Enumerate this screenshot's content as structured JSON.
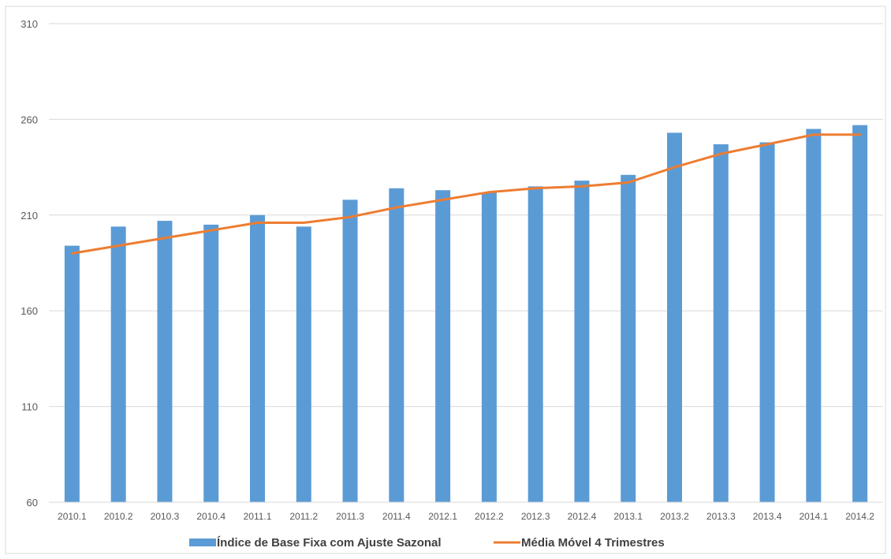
{
  "chart_data": {
    "type": "bar",
    "title": "",
    "xlabel": "",
    "ylabel": "",
    "categories": [
      "2010.1",
      "2010.2",
      "2010.3",
      "2010.4",
      "2011.1",
      "2011.2",
      "2011.3",
      "2011.4",
      "2012.1",
      "2012.2",
      "2012.3",
      "2012.4",
      "2013.1",
      "2013.2",
      "2013.3",
      "2013.4",
      "2014.1",
      "2014.2"
    ],
    "ylim": [
      60,
      310
    ],
    "yticks": [
      60,
      110,
      160,
      210,
      260,
      310
    ],
    "grid": true,
    "legend_position": "bottom",
    "series": [
      {
        "name": "Índice de Base Fixa com Ajuste Sazonal",
        "type": "bar",
        "color": "#5B9BD5",
        "values": [
          194,
          204,
          207,
          205,
          210,
          204,
          218,
          224,
          223,
          222,
          225,
          228,
          231,
          253,
          247,
          248,
          255,
          257
        ]
      },
      {
        "name": "Média Móvel 4 Trimestres",
        "type": "line",
        "color": "#ED7D31",
        "values": [
          190,
          194,
          198,
          202,
          206,
          206,
          209,
          214,
          218,
          222,
          224,
          225,
          227,
          235,
          242,
          247,
          252,
          252
        ]
      }
    ]
  }
}
